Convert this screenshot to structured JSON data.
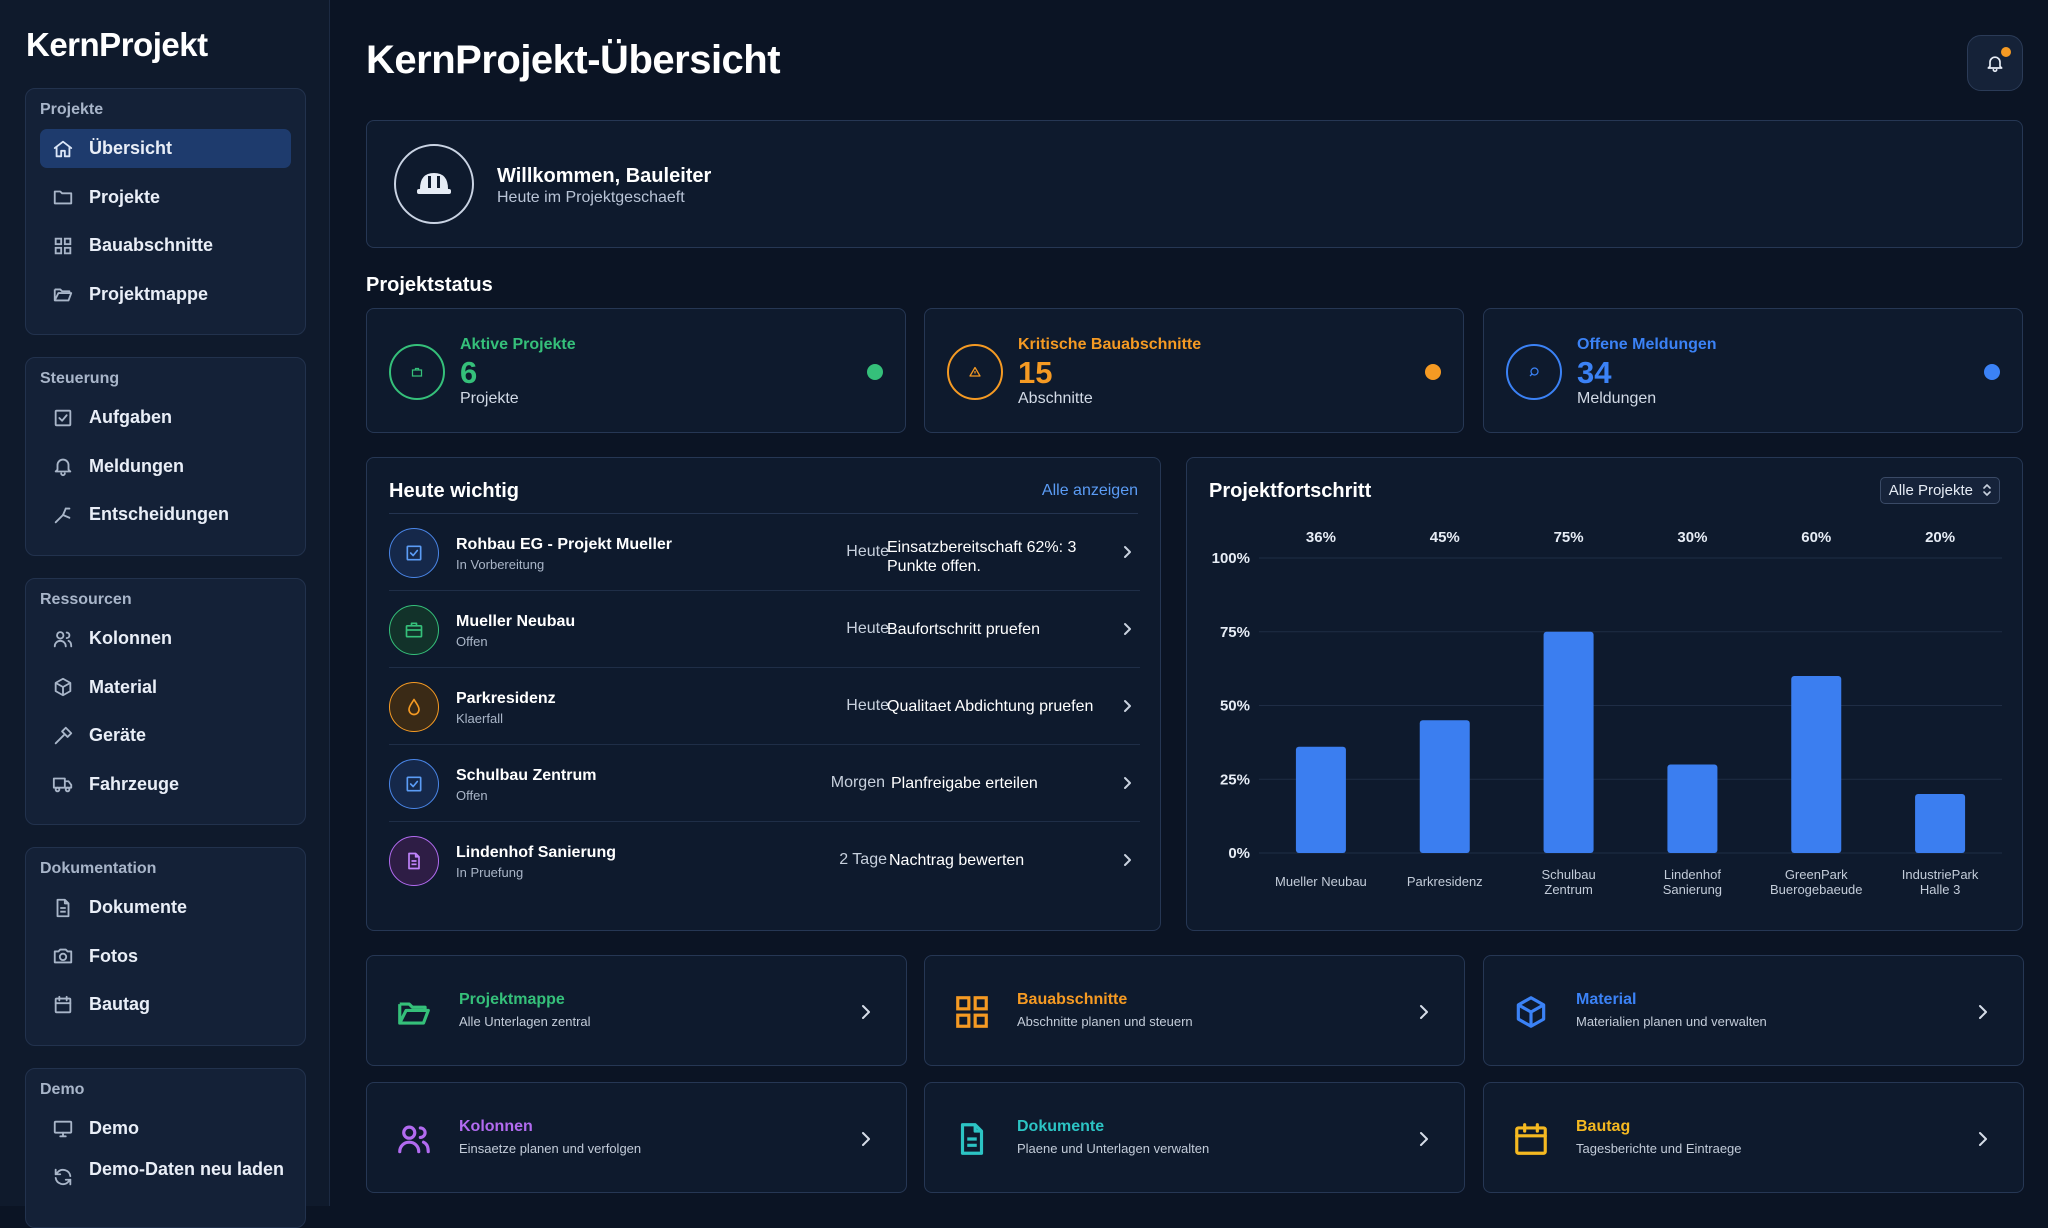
{
  "app": {
    "brand": "KernProjekt"
  },
  "sidebar": {
    "groups": [
      {
        "title": "Projekte",
        "items": [
          {
            "label": "Übersicht",
            "icon": "home-icon",
            "active": true
          },
          {
            "label": "Projekte",
            "icon": "folder-icon"
          },
          {
            "label": "Bauabschnitte",
            "icon": "grid-icon"
          },
          {
            "label": "Projektmappe",
            "icon": "folder-open-icon"
          }
        ]
      },
      {
        "title": "Steuerung",
        "items": [
          {
            "label": "Aufgaben",
            "icon": "checkbox-icon"
          },
          {
            "label": "Meldungen",
            "icon": "bell-icon"
          },
          {
            "label": "Entscheidungen",
            "icon": "decision-icon"
          }
        ]
      },
      {
        "title": "Ressourcen",
        "items": [
          {
            "label": "Kolonnen",
            "icon": "users-icon"
          },
          {
            "label": "Material",
            "icon": "box-icon"
          },
          {
            "label": "Geräte",
            "icon": "hammer-icon"
          },
          {
            "label": "Fahrzeuge",
            "icon": "truck-icon"
          }
        ]
      },
      {
        "title": "Dokumentation",
        "items": [
          {
            "label": "Dokumente",
            "icon": "document-icon"
          },
          {
            "label": "Fotos",
            "icon": "camera-icon"
          },
          {
            "label": "Bautag",
            "icon": "calendar-icon"
          }
        ]
      },
      {
        "title": "Demo",
        "items": [
          {
            "label": "Demo",
            "icon": "monitor-icon"
          },
          {
            "label": "Demo-Daten neu laden",
            "icon": "refresh-icon"
          }
        ]
      }
    ]
  },
  "header": {
    "title": "KernProjekt-Übersicht",
    "notification_icon": "bell-icon",
    "notification_dot_color": "#f59a23"
  },
  "welcome": {
    "title": "Willkommen, Bauleiter",
    "subtitle": "Heute im Projektgeschaeft",
    "icon": "helmet-icon"
  },
  "status": {
    "section_title": "Projektstatus",
    "cards": [
      {
        "title": "Aktive Projekte",
        "value": "6",
        "unit": "Projekte",
        "color": "#35c07a",
        "icon": "briefcase-icon"
      },
      {
        "title": "Kritische Bauabschnitte",
        "value": "15",
        "unit": "Abschnitte",
        "color": "#f59a23",
        "icon": "warning-icon"
      },
      {
        "title": "Offene Meldungen",
        "value": "34",
        "unit": "Meldungen",
        "color": "#3b82f6",
        "icon": "chat-icon"
      }
    ]
  },
  "today": {
    "title": "Heute wichtig",
    "link": "Alle anzeigen",
    "rows": [
      {
        "name": "Rohbau EG - Projekt Mueller",
        "status": "In Vorbereitung",
        "when": "Heute",
        "what": "Einsatzbereitschaft 62%: 3 Punkte offen.",
        "icon": "checkbox-icon",
        "color": "#4a86e8"
      },
      {
        "name": "Mueller Neubau",
        "status": "Offen",
        "when": "Heute",
        "what": "Baufortschritt pruefen",
        "icon": "briefcase-icon",
        "color": "#35c07a"
      },
      {
        "name": "Parkresidenz",
        "status": "Klaerfall",
        "when": "Heute",
        "what": "Qualitaet Abdichtung pruefen",
        "icon": "drop-icon",
        "color": "#f59a23"
      },
      {
        "name": "Schulbau Zentrum",
        "status": "Offen",
        "when": "Morgen",
        "what": "Planfreigabe erteilen",
        "icon": "checkbox-icon",
        "color": "#4a86e8"
      },
      {
        "name": "Lindenhof Sanierung",
        "status": "In Pruefung",
        "when": "2 Tage",
        "what": "Nachtrag bewerten",
        "icon": "document-icon",
        "color": "#b26bf0"
      }
    ]
  },
  "progress": {
    "title": "Projektfortschritt",
    "filter": "Alle Projekte"
  },
  "chart_data": {
    "type": "bar",
    "categories": [
      "Mueller Neubau",
      "Parkresidenz",
      "Schulbau Zentrum",
      "Lindenhof Sanierung",
      "GreenPark Buerogebaeude",
      "IndustriePark Halle 3"
    ],
    "category_lines": [
      [
        "Mueller Neubau"
      ],
      [
        "Parkresidenz"
      ],
      [
        "Schulbau",
        "Zentrum"
      ],
      [
        "Lindenhof",
        "Sanierung"
      ],
      [
        "GreenPark",
        "Buerogebaeude"
      ],
      [
        "IndustriePark",
        "Halle 3"
      ]
    ],
    "values": [
      36,
      45,
      75,
      30,
      60,
      20
    ],
    "value_labels": [
      "36%",
      "45%",
      "75%",
      "30%",
      "60%",
      "20%"
    ],
    "yticks": [
      "0%",
      "25%",
      "50%",
      "75%",
      "100%"
    ],
    "ylim": [
      0,
      100
    ],
    "bar_color": "#3b7ef0",
    "grid": true
  },
  "quick_links": [
    {
      "title": "Projektmappe",
      "subtitle": "Alle Unterlagen zentral",
      "icon": "folder-open-icon",
      "color": "#35c07a"
    },
    {
      "title": "Bauabschnitte",
      "subtitle": "Abschnitte planen und steuern",
      "icon": "grid-icon",
      "color": "#f59a23"
    },
    {
      "title": "Material",
      "subtitle": "Materialien planen und verwalten",
      "icon": "box-icon",
      "color": "#3b82f6"
    },
    {
      "title": "Kolonnen",
      "subtitle": "Einsaetze planen und verfolgen",
      "icon": "users-icon",
      "color": "#b26bf0"
    },
    {
      "title": "Dokumente",
      "subtitle": "Plaene und Unterlagen verwalten",
      "icon": "document-icon",
      "color": "#2cc4c4"
    },
    {
      "title": "Bautag",
      "subtitle": "Tagesberichte und Eintraege",
      "icon": "calendar-icon",
      "color": "#f5b921"
    }
  ]
}
